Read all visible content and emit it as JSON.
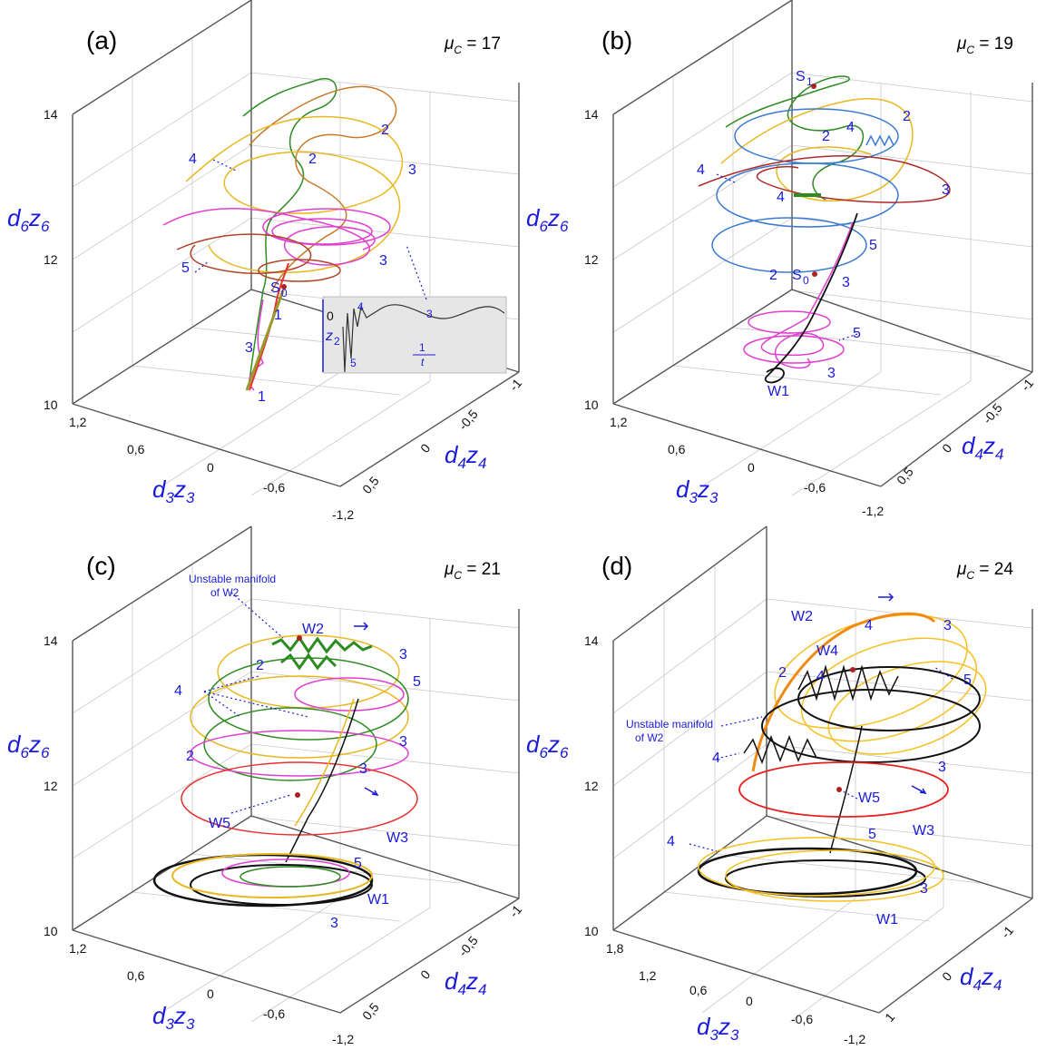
{
  "chart_data": [
    {
      "type": "line",
      "panel_label": "(a)",
      "mu_text": "μ",
      "mu_sub": "C",
      "mu_value": " = 17",
      "axes": {
        "x": {
          "label_d": "d",
          "label_d_sub": "3",
          "label_z": "z",
          "label_z_sub": "3",
          "ticks": [
            "1,2",
            "0,6",
            "0",
            "-0,6",
            "-1,2"
          ],
          "range": [
            -1.2,
            1.2
          ]
        },
        "y": {
          "label_d": "d",
          "label_d_sub": "4",
          "label_z": "z",
          "label_z_sub": "4",
          "ticks": [
            "-1",
            "-0,5",
            "0",
            "0,5"
          ],
          "range": [
            -1,
            0.5
          ]
        },
        "z": {
          "label_d": "d",
          "label_d_sub": "6",
          "label_z": "z",
          "label_z_sub": "6",
          "ticks": [
            "14",
            "12",
            "10"
          ],
          "range": [
            10,
            14
          ]
        }
      },
      "grid": true,
      "annotations": [
        "4",
        "2",
        "2",
        "3",
        "3",
        "5",
        "1",
        "3",
        "1"
      ],
      "points": [
        {
          "name": "S",
          "sub": "0"
        }
      ],
      "inset": {
        "ylabel": "z",
        "ylabel_sub": "2",
        "y_tick": "0",
        "x_num": "1",
        "x_den": "t",
        "labels": [
          "4",
          "3",
          "5"
        ]
      },
      "series_colors": [
        "#2e8b22",
        "#c77a2a",
        "#e8b820",
        "#e040d0",
        "#b04428",
        "#e83030"
      ]
    },
    {
      "type": "line",
      "panel_label": "(b)",
      "mu_text": "μ",
      "mu_sub": "C",
      "mu_value": " = 19",
      "axes": {
        "x": {
          "label_d": "d",
          "label_d_sub": "3",
          "label_z": "z",
          "label_z_sub": "3",
          "ticks": [
            "1,2",
            "0,6",
            "0",
            "-0,6",
            "-1,2"
          ],
          "range": [
            -1.2,
            1.2
          ]
        },
        "y": {
          "label_d": "d",
          "label_d_sub": "4",
          "label_z": "z",
          "label_z_sub": "4",
          "ticks": [
            "-1",
            "-0,5",
            "0",
            "0,5"
          ],
          "range": [
            -1,
            0.5
          ]
        },
        "z": {
          "label_d": "d",
          "label_d_sub": "6",
          "label_z": "z",
          "label_z_sub": "6",
          "ticks": [
            "14",
            "12",
            "10"
          ],
          "range": [
            10,
            14
          ]
        }
      },
      "grid": true,
      "annotations": [
        "2",
        "4",
        "2",
        "4",
        "3",
        "4",
        "5",
        "2",
        "3",
        "5",
        "3",
        "W1"
      ],
      "points": [
        {
          "name": "S",
          "sub": "1"
        },
        {
          "name": "S",
          "sub": "0"
        }
      ],
      "series_colors": [
        "#2e8b22",
        "#e8b820",
        "#3a7ad0",
        "#b02828",
        "#e040d0",
        "#111111"
      ]
    },
    {
      "type": "line",
      "panel_label": "(c)",
      "mu_text": "μ",
      "mu_sub": "C",
      "mu_value": " = 21",
      "axes": {
        "x": {
          "label_d": "d",
          "label_d_sub": "3",
          "label_z": "z",
          "label_z_sub": "3",
          "ticks": [
            "1,2",
            "0,6",
            "0",
            "-0,6",
            "-1,2"
          ],
          "range": [
            -1.2,
            1.2
          ]
        },
        "y": {
          "label_d": "d",
          "label_d_sub": "4",
          "label_z": "z",
          "label_z_sub": "4",
          "ticks": [
            "-1",
            "-0,5",
            "0",
            "0,5"
          ],
          "range": [
            -1,
            0.5
          ]
        },
        "z": {
          "label_d": "d",
          "label_d_sub": "6",
          "label_z": "z",
          "label_z_sub": "6",
          "ticks": [
            "14",
            "12",
            "10"
          ],
          "range": [
            10,
            14
          ]
        }
      },
      "grid": true,
      "manifold_line1": "Unstable manifold",
      "manifold_line2": "of W2",
      "annotations": [
        "W2",
        "2",
        "3",
        "4",
        "5",
        "3",
        "2",
        "3",
        "W5",
        "W3",
        "5",
        "W1",
        "3"
      ],
      "series_colors": [
        "#2e8b22",
        "#e8b820",
        "#e040d0",
        "#e83030",
        "#111111"
      ]
    },
    {
      "type": "line",
      "panel_label": "(d)",
      "mu_text": "μ",
      "mu_sub": "C",
      "mu_value": " = 24",
      "axes": {
        "x": {
          "label_d": "d",
          "label_d_sub": "3",
          "label_z": "z",
          "label_z_sub": "3",
          "ticks": [
            "1,8",
            "1,2",
            "0,6",
            "0",
            "-0,6",
            "-1,2"
          ],
          "range": [
            -1.2,
            1.8
          ]
        },
        "y": {
          "label_d": "d",
          "label_d_sub": "4",
          "label_z": "z",
          "label_z_sub": "4",
          "ticks": [
            "-1",
            "0",
            "1"
          ],
          "range": [
            -1,
            1
          ]
        },
        "z": {
          "label_d": "d",
          "label_d_sub": "6",
          "label_z": "z",
          "label_z_sub": "6",
          "ticks": [
            "14",
            "12",
            "10"
          ],
          "range": [
            10,
            14
          ]
        }
      },
      "grid": true,
      "manifold_line1": "Unstable manifold",
      "manifold_line2": "of W2",
      "annotations": [
        "W2",
        "4",
        "3",
        "W4",
        "2",
        "4",
        "5",
        "4",
        "3",
        "W5",
        "W3",
        "5",
        "4",
        "3",
        "W1"
      ],
      "series_colors": [
        "#f08a10",
        "#f5c020",
        "#111111",
        "#e82020"
      ]
    }
  ]
}
